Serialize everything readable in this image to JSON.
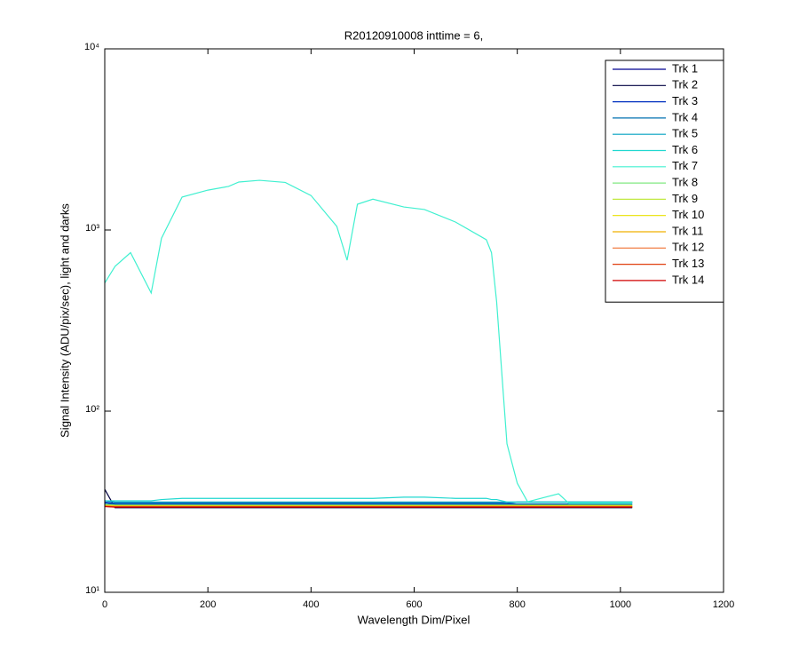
{
  "chart_data": {
    "type": "line",
    "title": "R20120910008 inttime = 6,",
    "xlabel": "Wavelength Dim/Pixel",
    "ylabel": "Signal Intensity (ADU/pix/sec), light and darks",
    "ylog": true,
    "legend": "northeast",
    "xlim": [
      0,
      1200
    ],
    "xticks": [
      0,
      200,
      400,
      600,
      800,
      1000,
      1200
    ],
    "ylim": [
      10,
      10000
    ],
    "yticks": [
      {
        "value": 10,
        "label": "10¹"
      },
      {
        "value": 100,
        "label": "10²"
      },
      {
        "value": 1000,
        "label": "10³"
      },
      {
        "value": 10000,
        "label": "10⁴"
      }
    ],
    "x": [
      0,
      20,
      50,
      90,
      110,
      150,
      200,
      240,
      260,
      300,
      350,
      400,
      450,
      470,
      490,
      520,
      580,
      620,
      680,
      740,
      750,
      760,
      770,
      780,
      800,
      820,
      880,
      900,
      950,
      1000,
      1023
    ],
    "series": [
      {
        "name": "Trk 1",
        "color": "#000090",
        "values": [
          31,
          30.5,
          30.5,
          30.5,
          30.5,
          30.5,
          30.5,
          30.5,
          30.5,
          30.5,
          30.5,
          30.5,
          30.5,
          30.5,
          30.5,
          30.5,
          30.5,
          30.5,
          30.5,
          30.5,
          30.5,
          30.5,
          30.5,
          30.5,
          30.5,
          30.5,
          30.5,
          30.5,
          30.5,
          30.5,
          30.5
        ]
      },
      {
        "name": "Trk 2",
        "color": "#000040",
        "values": [
          37,
          29.3,
          29.3,
          29.3,
          29.3,
          29.3,
          29.3,
          29.3,
          29.3,
          29.3,
          29.3,
          29.3,
          29.3,
          29.3,
          29.3,
          29.3,
          29.3,
          29.3,
          29.3,
          29.3,
          29.3,
          29.3,
          29.3,
          29.3,
          29.3,
          29.3,
          29.3,
          29.3,
          29.3,
          29.3,
          29.3
        ]
      },
      {
        "name": "Trk 3",
        "color": "#0030c0",
        "values": [
          31.5,
          31,
          31,
          31,
          31,
          31,
          31,
          31,
          31,
          31,
          31,
          31,
          31,
          31,
          31,
          31,
          31,
          31,
          31,
          31,
          31,
          31,
          31,
          31,
          31.5,
          31.5,
          31.5,
          31.5,
          31.5,
          31.5,
          31.5
        ]
      },
      {
        "name": "Trk 4",
        "color": "#0070b0",
        "values": [
          31,
          30.8,
          30.8,
          30.8,
          30.8,
          30.8,
          30.8,
          30.8,
          30.8,
          30.8,
          30.8,
          30.8,
          30.8,
          30.8,
          30.8,
          30.8,
          30.8,
          30.8,
          30.8,
          30.8,
          30.8,
          30.8,
          30.8,
          30.8,
          30.8,
          30.8,
          30.8,
          30.8,
          30.8,
          30.8,
          30.8
        ]
      },
      {
        "name": "Trk 5",
        "color": "#00a0c0",
        "values": [
          32,
          31.5,
          31.5,
          31.5,
          31.5,
          31.5,
          31.5,
          31.5,
          31.5,
          31.5,
          31.5,
          31.5,
          31.5,
          31.5,
          31.5,
          31.5,
          31.5,
          31.5,
          31.5,
          31.5,
          31.5,
          31.5,
          31.5,
          31.5,
          31.5,
          31.5,
          31.5,
          31.5,
          31.5,
          31.5,
          31.5
        ]
      },
      {
        "name": "Trk 6",
        "color": "#20d8d0",
        "values": [
          32,
          32,
          32,
          32,
          32.5,
          33,
          33,
          33,
          33,
          33,
          33,
          33,
          33,
          33,
          33,
          33,
          33.5,
          33.5,
          33,
          33,
          32.5,
          32.5,
          32,
          31.5,
          31.5,
          31.5,
          31.5,
          31.5,
          31.5,
          31.5,
          31.5
        ]
      },
      {
        "name": "Trk 7",
        "color": "#40f0d0",
        "values": [
          510,
          630,
          750,
          449,
          900,
          1520,
          1660,
          1740,
          1840,
          1880,
          1830,
          1550,
          1047,
          681,
          1387,
          1480,
          1340,
          1297,
          1107,
          884,
          750,
          401,
          162,
          66,
          40,
          31.6,
          35,
          31,
          31,
          31,
          31
        ]
      },
      {
        "name": "Trk 8",
        "color": "#80e880",
        "values": [
          30.5,
          30.3,
          30.3,
          30.3,
          30.3,
          30.3,
          30.3,
          30.3,
          30.3,
          30.3,
          30.3,
          30.3,
          30.3,
          30.3,
          30.3,
          30.3,
          30.3,
          30.3,
          30.3,
          30.3,
          30.3,
          30.3,
          30.3,
          30.3,
          30.3,
          30.3,
          30.3,
          30.3,
          30.3,
          30.3,
          30.3
        ]
      },
      {
        "name": "Trk 9",
        "color": "#c0e840",
        "values": [
          30.3,
          30.1,
          30.1,
          30.1,
          30.1,
          30.1,
          30.1,
          30.1,
          30.1,
          30.1,
          30.1,
          30.1,
          30.1,
          30.1,
          30.1,
          30.1,
          30.1,
          30.1,
          30.1,
          30.1,
          30.1,
          30.1,
          30.1,
          30.1,
          30.1,
          30.1,
          30.1,
          30.1,
          30.1,
          30.1,
          30.1
        ]
      },
      {
        "name": "Trk 10",
        "color": "#e8e000",
        "values": [
          30.2,
          30,
          30,
          30,
          30,
          30,
          30,
          30,
          30,
          30,
          30,
          30,
          30,
          30,
          30,
          30,
          30,
          30,
          30,
          30,
          30,
          30,
          30,
          30,
          30,
          30,
          30,
          30,
          30,
          30,
          30
        ]
      },
      {
        "name": "Trk 11",
        "color": "#f0b000",
        "values": [
          30,
          29.8,
          29.8,
          29.8,
          29.8,
          29.8,
          29.8,
          29.8,
          29.8,
          29.8,
          29.8,
          29.8,
          29.8,
          29.8,
          29.8,
          29.8,
          29.8,
          29.8,
          29.8,
          29.8,
          29.8,
          29.8,
          29.8,
          29.8,
          29.8,
          29.8,
          29.8,
          29.8,
          29.8,
          29.8,
          29.8
        ]
      },
      {
        "name": "Trk 12",
        "color": "#f07030",
        "values": [
          29.9,
          29.7,
          29.7,
          29.7,
          29.7,
          29.7,
          29.7,
          29.7,
          29.7,
          29.7,
          29.7,
          29.7,
          29.7,
          29.7,
          29.7,
          29.7,
          29.7,
          29.7,
          29.7,
          29.7,
          29.7,
          29.7,
          29.7,
          29.7,
          29.7,
          29.7,
          29.7,
          29.7,
          29.7,
          29.7,
          29.7
        ]
      },
      {
        "name": "Trk 13",
        "color": "#e04010",
        "values": [
          29.8,
          29.6,
          29.6,
          29.6,
          29.6,
          29.6,
          29.6,
          29.6,
          29.6,
          29.6,
          29.6,
          29.6,
          29.6,
          29.6,
          29.6,
          29.6,
          29.6,
          29.6,
          29.6,
          29.6,
          29.6,
          29.6,
          29.6,
          29.6,
          29.6,
          29.6,
          29.6,
          29.6,
          29.6,
          29.6,
          29.6
        ]
      },
      {
        "name": "Trk 14",
        "color": "#d00000",
        "values": [
          29.7,
          29.5,
          29.5,
          29.5,
          29.5,
          29.5,
          29.5,
          29.5,
          29.5,
          29.5,
          29.5,
          29.5,
          29.5,
          29.5,
          29.5,
          29.5,
          29.5,
          29.5,
          29.5,
          29.5,
          29.5,
          29.5,
          29.5,
          29.5,
          29.5,
          29.5,
          29.5,
          29.5,
          29.5,
          29.5,
          29.5
        ]
      }
    ]
  }
}
